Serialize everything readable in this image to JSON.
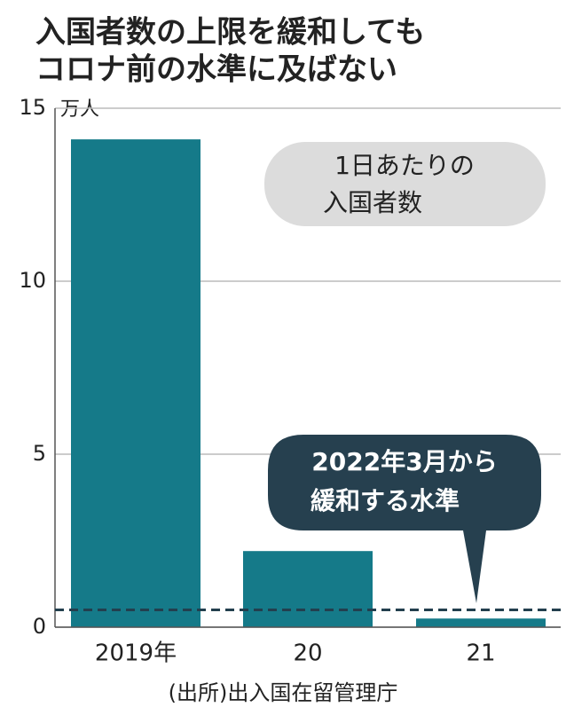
{
  "chart_data": {
    "type": "bar",
    "title": [
      "入国者数の上限を緩和しても",
      "コロナ前の水準に及ばない"
    ],
    "unit": "万人",
    "categories": [
      "2019年",
      "20",
      "21"
    ],
    "values": [
      14.1,
      2.2,
      0.25
    ],
    "color": "#157a89",
    "ylim": [
      0,
      15
    ],
    "yticks": [
      0,
      5,
      10,
      15
    ],
    "grid": true,
    "reference_line": 0.5,
    "annotations": {
      "legend_box": [
        "1日あたりの",
        "入国者数"
      ],
      "callout": [
        "2022年3月から",
        "緩和する水準"
      ]
    },
    "source": "(出所)出入国在留管理庁"
  }
}
